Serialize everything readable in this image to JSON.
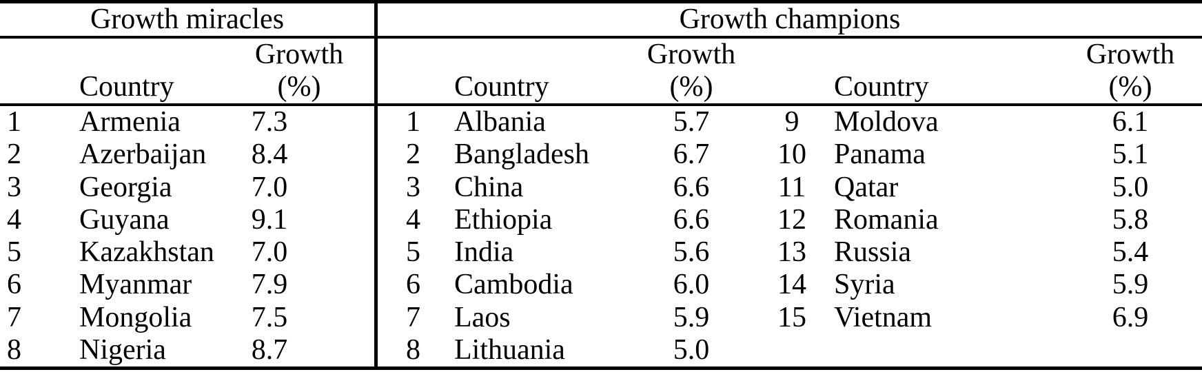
{
  "colors": {
    "background": "#ffffff",
    "text": "#000000",
    "rules": "#000000"
  },
  "table": {
    "miracles": {
      "title": "Growth miracles",
      "header": {
        "country": "Country",
        "growth_line1": "Growth",
        "growth_line2": "(%)"
      },
      "rows": [
        {
          "rank": "1",
          "country": "Armenia",
          "growth": "7.3"
        },
        {
          "rank": "2",
          "country": "Azerbaijan",
          "growth": "8.4"
        },
        {
          "rank": "3",
          "country": "Georgia",
          "growth": "7.0"
        },
        {
          "rank": "4",
          "country": "Guyana",
          "growth": "9.1"
        },
        {
          "rank": "5",
          "country": "Kazakhstan",
          "growth": "7.0"
        },
        {
          "rank": "6",
          "country": "Myanmar",
          "growth": "7.9"
        },
        {
          "rank": "7",
          "country": "Mongolia",
          "growth": "7.5"
        },
        {
          "rank": "8",
          "country": "Nigeria",
          "growth": "8.7"
        }
      ]
    },
    "champions": {
      "title": "Growth champions",
      "header_a": {
        "country": "Country",
        "growth_line1": "Growth",
        "growth_line2": "(%)"
      },
      "header_b": {
        "country": "Country",
        "growth_line1": "Growth",
        "growth_line2": "(%)"
      },
      "rows_a": [
        {
          "rank": "1",
          "country": "Albania",
          "growth": "5.7"
        },
        {
          "rank": "2",
          "country": "Bangladesh",
          "growth": "6.7"
        },
        {
          "rank": "3",
          "country": "China",
          "growth": "6.6"
        },
        {
          "rank": "4",
          "country": "Ethiopia",
          "growth": "6.6"
        },
        {
          "rank": "5",
          "country": "India",
          "growth": "5.6"
        },
        {
          "rank": "6",
          "country": "Cambodia",
          "growth": "6.0"
        },
        {
          "rank": "7",
          "country": "Laos",
          "growth": "5.9"
        },
        {
          "rank": "8",
          "country": "Lithuania",
          "growth": "5.0"
        }
      ],
      "rows_b": [
        {
          "rank": "9",
          "country": "Moldova",
          "growth": "6.1"
        },
        {
          "rank": "10",
          "country": "Panama",
          "growth": "5.1"
        },
        {
          "rank": "11",
          "country": "Qatar",
          "growth": "5.0"
        },
        {
          "rank": "12",
          "country": "Romania",
          "growth": "5.8"
        },
        {
          "rank": "13",
          "country": "Russia",
          "growth": "5.4"
        },
        {
          "rank": "14",
          "country": "Syria",
          "growth": "5.9"
        },
        {
          "rank": "15",
          "country": "Vietnam",
          "growth": "6.9"
        }
      ]
    }
  }
}
